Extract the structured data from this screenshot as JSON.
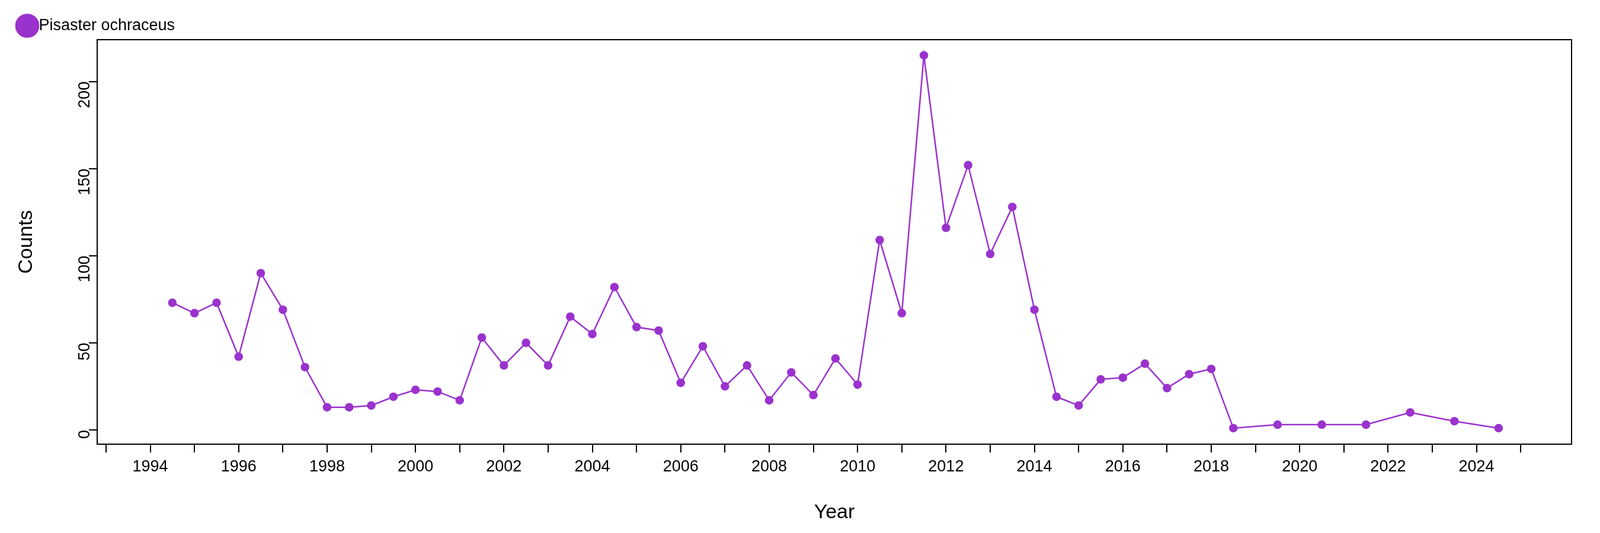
{
  "chart_data": {
    "type": "line",
    "x_label": "Year",
    "y_label": "Counts",
    "x": [
      1994.5,
      1995.0,
      1995.5,
      1996.0,
      1996.5,
      1997.0,
      1997.5,
      1998.0,
      1998.5,
      1999.0,
      1999.5,
      2000.0,
      2000.5,
      2001.0,
      2001.5,
      2002.0,
      2002.5,
      2003.0,
      2003.5,
      2004.0,
      2004.5,
      2005.0,
      2005.5,
      2006.0,
      2006.5,
      2007.0,
      2007.5,
      2008.0,
      2008.5,
      2009.0,
      2009.5,
      2010.0,
      2010.5,
      2011.0,
      2011.5,
      2012.0,
      2012.5,
      2013.0,
      2013.5,
      2014.0,
      2014.5,
      2015.0,
      2015.5,
      2016.0,
      2016.5,
      2017.0,
      2017.5,
      2018.0,
      2018.5,
      2019.5,
      2020.5,
      2021.5,
      2022.5,
      2023.5,
      2024.5
    ],
    "series": [
      {
        "name": "Pisaster ochraceus",
        "color": "#9a32cd",
        "marker": "circle",
        "values": [
          73,
          67,
          73,
          42,
          90,
          69,
          36,
          13,
          13,
          14,
          19,
          23,
          22,
          17,
          53,
          37,
          50,
          37,
          65,
          55,
          82,
          59,
          57,
          27,
          48,
          25,
          37,
          17,
          33,
          20,
          41,
          26,
          109,
          67,
          215,
          116,
          152,
          101,
          128,
          69,
          19,
          14,
          29,
          30,
          38,
          24,
          32,
          35,
          1,
          3,
          3,
          3,
          10,
          5,
          1
        ]
      }
    ],
    "xlim": [
      1992.8,
      2026.15
    ],
    "xticks": [
      1994,
      1996,
      1998,
      2000,
      2002,
      2004,
      2006,
      2008,
      2010,
      2012,
      2014,
      2016,
      2018,
      2020,
      2022,
      2024
    ],
    "ylim": [
      -8.2,
      224
    ],
    "yticks": [
      0,
      50,
      100,
      150,
      200
    ],
    "grid": false,
    "legend": "top left"
  }
}
